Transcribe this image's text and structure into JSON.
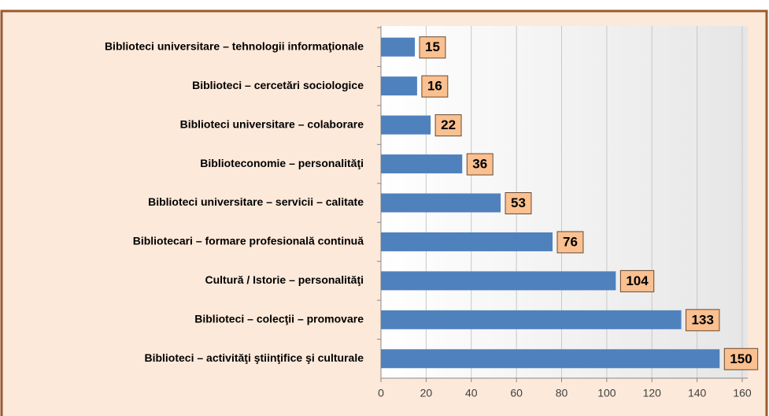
{
  "chart_data": {
    "type": "barh",
    "categories": [
      "Biblioteci universitare – tehnologii informaţionale",
      "Biblioteci – cercetări sociologice",
      "Biblioteci universitare – colaborare",
      "Biblioteconomie – personalităţi",
      "Biblioteci universitare – servicii – calitate",
      "Bibliotecari – formare profesională continuă",
      "Cultură / Istorie – personalităţi",
      "Biblioteci – colecţii – promovare",
      "Biblioteci  – activităţi ştiinţifice şi culturale"
    ],
    "values": [
      15,
      16,
      22,
      36,
      53,
      76,
      104,
      133,
      150
    ],
    "color": "#4f81bd",
    "xlim": [
      0,
      160
    ],
    "xticks": [
      0,
      20,
      40,
      60,
      80,
      100,
      120,
      140,
      160
    ],
    "grid": true
  }
}
